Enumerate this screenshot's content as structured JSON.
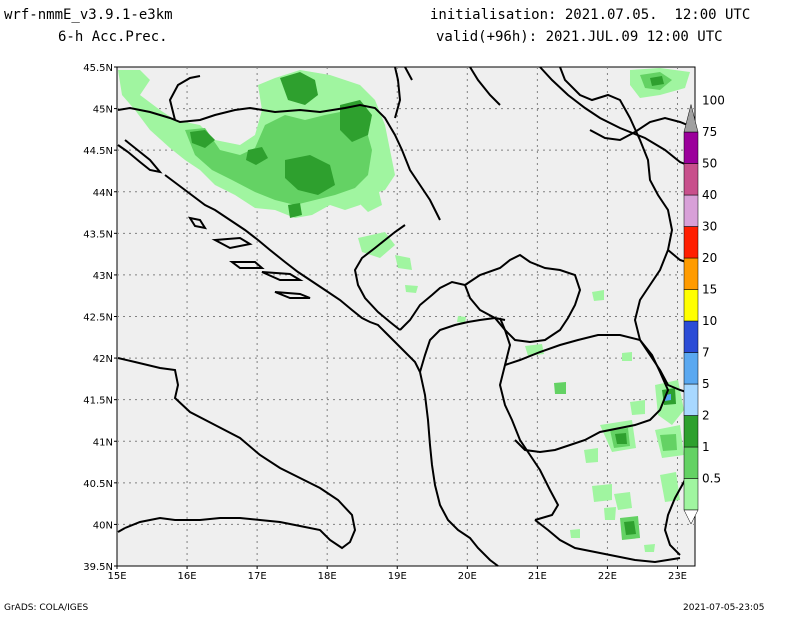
{
  "header": {
    "model": "wrf-nmmE_v3.9.1-e3km",
    "field": "6-h Acc.Prec.",
    "init": "initialisation: 2021.07.05.  12:00 UTC",
    "valid": "valid(+96h): 2021.JUL.09 12:00 UTC"
  },
  "footer": {
    "credit": "GrADS: COLA/IGES",
    "timestamp": "2021-07-05-23:05"
  },
  "axes": {
    "lon_labels": [
      "15E",
      "16E",
      "17E",
      "18E",
      "19E",
      "20E",
      "21E",
      "22E",
      "23E"
    ],
    "lat_labels": [
      "45.5N",
      "45N",
      "44.5N",
      "44N",
      "43.5N",
      "43N",
      "42.5N",
      "42N",
      "41.5N",
      "41N",
      "40.5N",
      "40N",
      "39.5N"
    ],
    "lon_range": [
      15,
      23.25
    ],
    "lat_range": [
      39.5,
      45.5
    ]
  },
  "colorbar": {
    "levels": [
      {
        "label": "0.5",
        "color": "#a0f5a0"
      },
      {
        "label": "1",
        "color": "#64d264"
      },
      {
        "label": "2",
        "color": "#2ea02e"
      },
      {
        "label": "5",
        "color": "#a8d8ff"
      },
      {
        "label": "7",
        "color": "#5aa8f0"
      },
      {
        "label": "10",
        "color": "#2b4cd6"
      },
      {
        "label": "15",
        "color": "#ffff00"
      },
      {
        "label": "20",
        "color": "#ff9b00"
      },
      {
        "label": "30",
        "color": "#ff1e00"
      },
      {
        "label": "40",
        "color": "#d8a0d8"
      },
      {
        "label": "50",
        "color": "#c8508c"
      },
      {
        "label": "75",
        "color": "#9b009b"
      },
      {
        "label": "100",
        "color": "#a0a0a0"
      }
    ]
  },
  "colors": {
    "background": "#efefef",
    "light_green": "#a0f5a0",
    "mid_green": "#64d264",
    "dark_green": "#2ea02e",
    "coast": "#000000",
    "grid": "#808080"
  }
}
